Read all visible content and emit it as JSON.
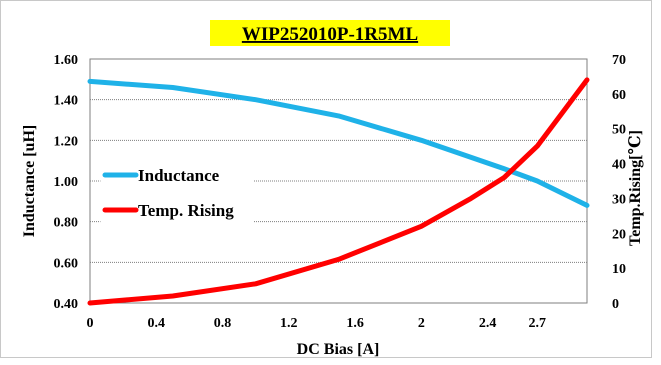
{
  "chart_data": {
    "type": "line",
    "title": "WIP252010P-1R5ML",
    "title_highlight_color": "#ffff00",
    "xlabel": "DC Bias [A]",
    "ylabel_left": "Inductance [uH]",
    "ylabel_right": "Temp.Rising[℃]",
    "xlim": [
      0,
      3.0
    ],
    "ylim_left": [
      0.4,
      1.6
    ],
    "ylim_right": [
      0,
      70
    ],
    "x_ticks": [
      "0",
      "0.4",
      "0.8",
      "1.2",
      "1.6",
      "2",
      "2.4",
      "2.7"
    ],
    "x_tick_values": [
      0,
      0.4,
      0.8,
      1.2,
      1.6,
      2.0,
      2.4,
      2.7
    ],
    "y_left_ticks": [
      "0.40",
      "0.60",
      "0.80",
      "1.00",
      "1.20",
      "1.40",
      "1.60"
    ],
    "y_left_tick_values": [
      0.4,
      0.6,
      0.8,
      1.0,
      1.2,
      1.4,
      1.6
    ],
    "y_right_ticks": [
      "0",
      "10",
      "20",
      "30",
      "40",
      "50",
      "60",
      "70"
    ],
    "y_right_tick_values": [
      0,
      10,
      20,
      30,
      40,
      50,
      60,
      70
    ],
    "grid": "horizontal",
    "legend_position": "left-middle",
    "series": [
      {
        "name": "Inductance",
        "axis": "left",
        "color": "#1fb2e8",
        "x": [
          0,
          0.5,
          1.0,
          1.5,
          2.0,
          2.5,
          2.7,
          3.0
        ],
        "y": [
          1.49,
          1.46,
          1.4,
          1.32,
          1.2,
          1.06,
          1.0,
          0.88
        ]
      },
      {
        "name": "Temp. Rising",
        "axis": "right",
        "color": "#ff0000",
        "x": [
          0,
          0.5,
          1.0,
          1.5,
          2.0,
          2.3,
          2.5,
          2.7,
          3.0
        ],
        "y": [
          0,
          2,
          5.5,
          12.5,
          22,
          30,
          36,
          45,
          64
        ]
      }
    ]
  }
}
